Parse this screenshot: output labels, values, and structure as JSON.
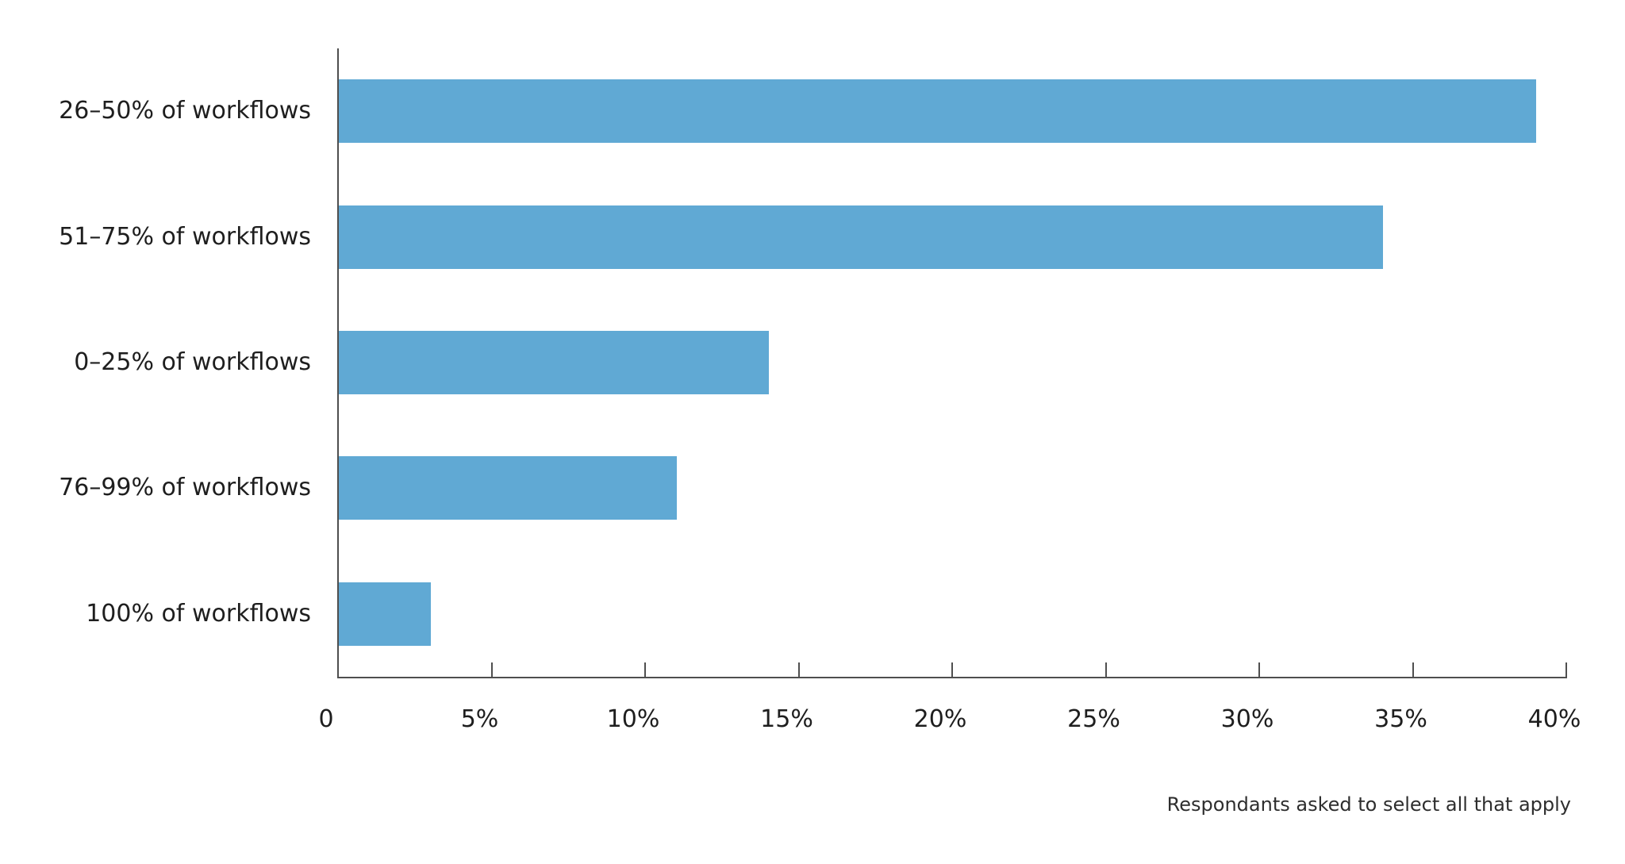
{
  "chart_data": {
    "type": "bar",
    "orientation": "horizontal",
    "title": "",
    "xlabel": "",
    "ylabel": "",
    "categories": [
      "26–50% of workflows",
      "51–75% of workflows",
      "0–25% of workflows",
      "76–99% of workflows",
      "100% of workflows"
    ],
    "values": [
      39,
      34,
      14,
      11,
      3
    ],
    "value_unit": "%",
    "xlim": [
      0,
      40
    ],
    "x_tick_values": [
      0,
      5,
      10,
      15,
      20,
      25,
      30,
      35,
      40
    ],
    "x_tick_labels": [
      "0",
      "5%",
      "10%",
      "15%",
      "20%",
      "25%",
      "30%",
      "35%",
      "40%"
    ],
    "grid": false,
    "legend": "none",
    "bar_color": "#60a9d4",
    "axis_color": "#4f4f4f",
    "label_color": "#1e1e1e"
  },
  "footnote": "Respondants asked to select all that apply"
}
